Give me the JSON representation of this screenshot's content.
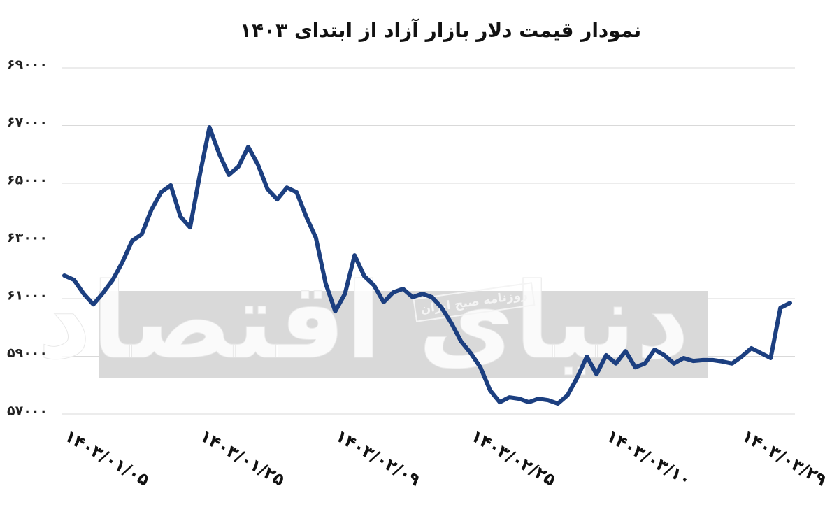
{
  "chart_data": {
    "type": "line",
    "title": "نمودار قیمت دلار بازار آزاد از ابتدای ۱۴۰۳",
    "watermark": {
      "logo": "دنیای اقتصاد",
      "tagline": "روزنامه صبح ایران"
    },
    "categories": [
      "۱۴۰۳/۰۱/۰۵",
      null,
      null,
      null,
      null,
      null,
      null,
      null,
      null,
      null,
      null,
      null,
      null,
      null,
      "۱۴۰۳/۰۱/۲۵",
      null,
      null,
      null,
      null,
      null,
      null,
      null,
      null,
      null,
      null,
      null,
      null,
      null,
      "۱۴۰۳/۰۲/۰۹",
      null,
      null,
      null,
      null,
      null,
      null,
      null,
      null,
      null,
      null,
      null,
      null,
      null,
      "۱۴۰۳/۰۲/۲۵",
      null,
      null,
      null,
      null,
      null,
      null,
      null,
      null,
      null,
      null,
      null,
      null,
      null,
      "۱۴۰۳/۰۳/۱۰",
      null,
      null,
      null,
      null,
      null,
      null,
      null,
      null,
      null,
      null,
      null,
      null,
      null,
      "۱۴۰۳/۰۳/۲۹",
      null,
      null,
      null,
      null,
      null
    ],
    "series": [
      {
        "color": "#1c3f80",
        "values": [
          61800,
          61650,
          61170,
          60800,
          61200,
          61650,
          62260,
          63000,
          63230,
          64080,
          64690,
          64930,
          63840,
          63470,
          65290,
          66940,
          66020,
          65290,
          65580,
          66260,
          65650,
          64800,
          64440,
          64850,
          64690,
          63840,
          63110,
          61530,
          60560,
          61170,
          62500,
          61780,
          61460,
          60880,
          61220,
          61340,
          61050,
          61170,
          61050,
          60680,
          60150,
          59520,
          59110,
          58620,
          57820,
          57410,
          57580,
          57530,
          57410,
          57530,
          57480,
          57360,
          57650,
          58260,
          58990,
          58380,
          59040,
          58750,
          59180,
          58620,
          58750,
          59230,
          59040,
          58750,
          58940,
          58840,
          58870,
          58870,
          58820,
          58750,
          58990,
          59280,
          59110,
          58940,
          60680,
          60850
        ]
      }
    ],
    "ylim": [
      57000,
      69000
    ],
    "yticks": [
      {
        "value": 57000,
        "label": "۵۷۰۰۰"
      },
      {
        "value": 59000,
        "label": "۵۹۰۰۰"
      },
      {
        "value": 61000,
        "label": "۶۱۰۰۰"
      },
      {
        "value": 63000,
        "label": "۶۳۰۰۰"
      },
      {
        "value": 65000,
        "label": "۶۵۰۰۰"
      },
      {
        "value": 67000,
        "label": "۶۷۰۰۰"
      },
      {
        "value": 69000,
        "label": "۶۹۰۰۰"
      }
    ],
    "grid": true
  }
}
